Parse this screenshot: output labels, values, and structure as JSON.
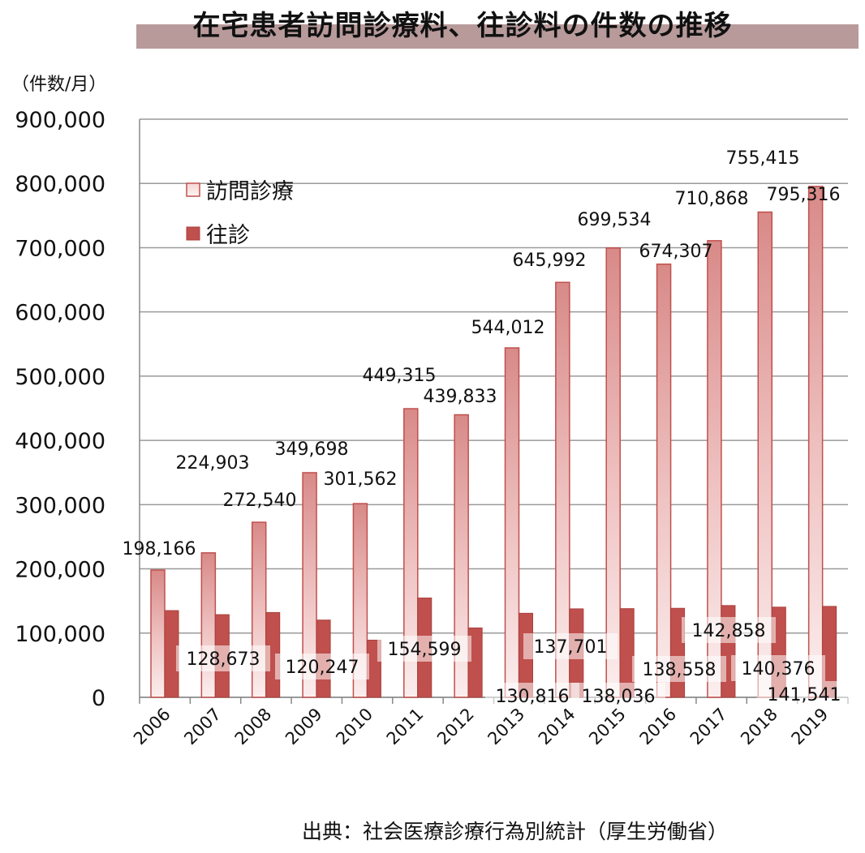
{
  "chart_data": {
    "type": "bar",
    "title": "在宅患者訪問診療料、往診料の件数の推移",
    "ylabel": "（件数/月）",
    "ylim": [
      0,
      900000
    ],
    "yticks": [
      0,
      100000,
      200000,
      300000,
      400000,
      500000,
      600000,
      700000,
      800000,
      900000
    ],
    "ytick_labels": [
      "0",
      "100,000",
      "200,000",
      "300,000",
      "400,000",
      "500,000",
      "600,000",
      "700,000",
      "800,000",
      "900,000"
    ],
    "grid": true,
    "legend_position": "top-left",
    "categories": [
      "2006",
      "2007",
      "2008",
      "2009",
      "2010",
      "2011",
      "2012",
      "2013",
      "2014",
      "2015",
      "2016",
      "2017",
      "2018",
      "2019"
    ],
    "series": [
      {
        "name": "訪問診療",
        "color": "#c0504d",
        "values": [
          198166,
          224903,
          272540,
          349698,
          301562,
          449315,
          439833,
          544012,
          645992,
          699534,
          674307,
          710868,
          755415,
          795316
        ],
        "labels": [
          "198,166",
          "224,903",
          "272,540",
          "349,698",
          "301,562",
          "449,315",
          "439,833",
          "544,012",
          "645,992",
          "699,534",
          "674,307",
          "710,868",
          "755,415",
          "795,316"
        ]
      },
      {
        "name": "往診",
        "color": "#c0504d",
        "values": [
          135000,
          128673,
          132000,
          120247,
          89000,
          154599,
          108000,
          130816,
          137701,
          138036,
          138558,
          142858,
          140376,
          141541
        ],
        "labels": [
          "",
          "128,673",
          "",
          "120,247",
          "",
          "154,599",
          "",
          "130,816",
          "137,701",
          "138,036",
          "138,558",
          "142,858",
          "140,376",
          "141,541"
        ]
      }
    ],
    "source": "出典：社会医療診療行為別統計（厚生労働省）"
  }
}
